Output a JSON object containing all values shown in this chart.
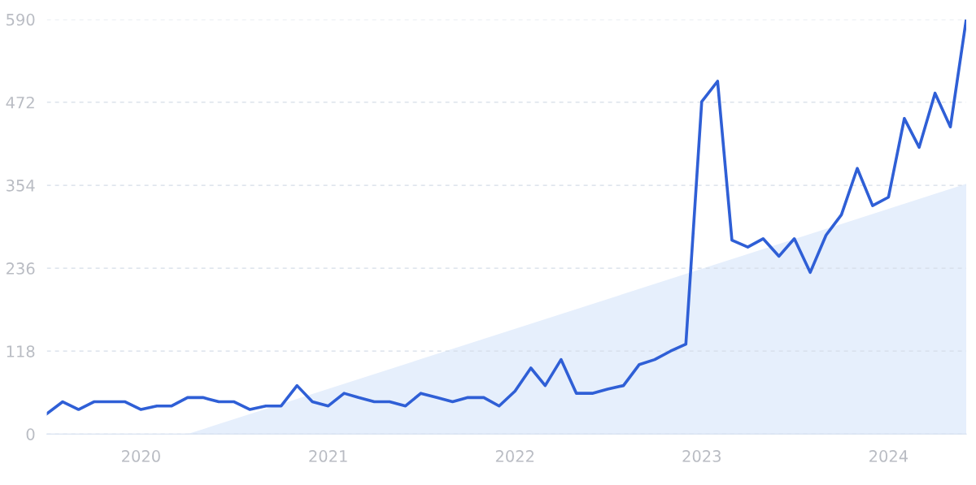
{
  "chart_data": {
    "type": "line",
    "x": [
      "2019-07",
      "2019-08",
      "2019-09",
      "2019-10",
      "2019-11",
      "2019-12",
      "2020-01",
      "2020-02",
      "2020-03",
      "2020-04",
      "2020-05",
      "2020-06",
      "2020-07",
      "2020-08",
      "2020-09",
      "2020-10",
      "2020-11",
      "2020-12",
      "2021-01",
      "2021-02",
      "2021-03",
      "2021-04",
      "2021-05",
      "2021-06",
      "2021-07",
      "2021-08",
      "2021-09",
      "2021-10",
      "2021-11",
      "2021-12",
      "2022-01",
      "2022-02",
      "2022-03",
      "2022-04",
      "2022-05",
      "2022-06",
      "2022-07",
      "2022-08",
      "2022-09",
      "2022-10",
      "2022-11",
      "2022-12",
      "2023-01",
      "2023-02",
      "2023-03",
      "2023-04",
      "2023-05",
      "2023-06",
      "2023-07",
      "2023-08",
      "2023-09",
      "2023-10",
      "2023-11",
      "2023-12",
      "2024-01",
      "2024-02",
      "2024-03",
      "2024-04",
      "2024-05",
      "2024-06"
    ],
    "series": [
      {
        "type": "area",
        "color": "#e6effc",
        "x": [
          "2020-04",
          "2024-06"
        ],
        "values": [
          0,
          356
        ]
      },
      {
        "color": "#2f5fd6",
        "values": [
          29,
          46,
          35,
          46,
          46,
          46,
          35,
          40,
          40,
          52,
          52,
          46,
          46,
          35,
          40,
          40,
          69,
          46,
          40,
          58,
          52,
          46,
          46,
          40,
          58,
          52,
          46,
          52,
          52,
          40,
          61,
          94,
          69,
          106,
          58,
          58,
          64,
          69,
          99,
          106,
          118,
          128,
          473,
          502,
          276,
          266,
          278,
          253,
          278,
          230,
          283,
          312,
          378,
          325,
          337,
          449,
          408,
          485,
          437,
          590
        ]
      }
    ],
    "xlim": [
      "2019-07",
      "2024-06"
    ],
    "xticks": [
      {
        "value": "2020-01",
        "label": "2020"
      },
      {
        "value": "2021-01",
        "label": "2021"
      },
      {
        "value": "2022-01",
        "label": "2022"
      },
      {
        "value": "2023-01",
        "label": "2023"
      },
      {
        "value": "2024-01",
        "label": "2024"
      }
    ],
    "ylim": [
      0,
      590
    ],
    "yticks": [
      0,
      118,
      236,
      354,
      472,
      590
    ],
    "grid": "y",
    "line_style": "solid",
    "marker": "none"
  }
}
